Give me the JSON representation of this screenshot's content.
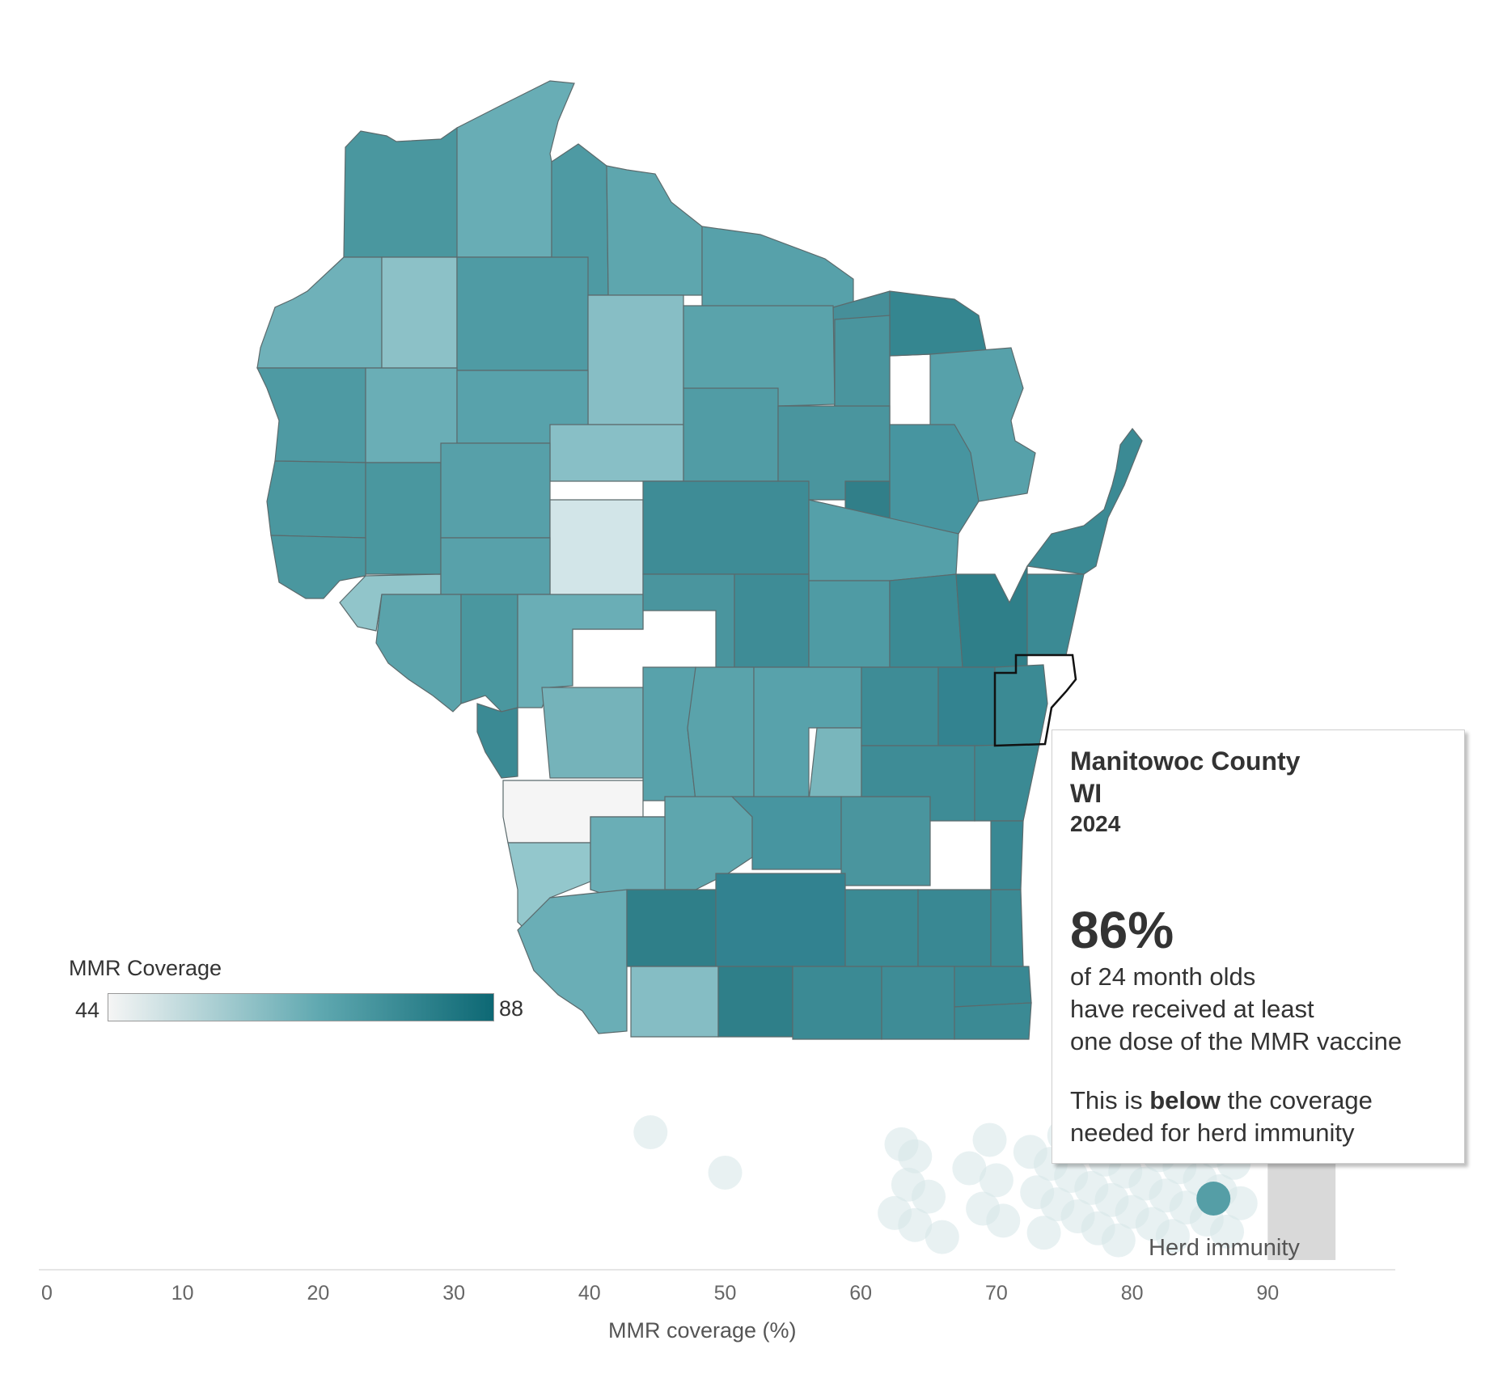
{
  "legend": {
    "title": "MMR Coverage",
    "min_label": "44",
    "max_label": "88",
    "color_low": "#f5f5f5",
    "color_high": "#0d6874"
  },
  "tooltip": {
    "county": "Manitowoc County",
    "state": "WI",
    "year": "2024",
    "value": "86%",
    "line1": "of 24 month olds",
    "line2": "have received at least",
    "line3": "one dose of the MMR vaccine",
    "comparison_pre": "This is",
    "comparison_word": "below",
    "comparison_post": "the coverage",
    "comparison_line2": "needed for herd immunity"
  },
  "chart_data": {
    "type": "scatter",
    "xlabel": "MMR coverage (%)",
    "xlim": [
      0,
      100
    ],
    "ticks": [
      "0",
      "10",
      "20",
      "30",
      "40",
      "50",
      "60",
      "70",
      "80",
      "90"
    ],
    "herd_immunity_label": "Herd immunity",
    "herd_immunity_range": [
      90,
      95
    ],
    "highlighted": {
      "name": "Manitowoc County",
      "value": 86
    },
    "values": [
      44.5,
      50,
      62.5,
      63,
      63.5,
      64,
      64,
      65,
      66,
      68,
      69,
      69.5,
      70,
      70.5,
      72.5,
      73,
      73.5,
      74,
      74.5,
      75,
      75.5,
      76,
      76.5,
      77,
      77.5,
      78,
      78.5,
      79,
      79.5,
      80,
      80.5,
      81,
      81.5,
      82,
      82.5,
      83,
      83.5,
      84,
      84.5,
      85,
      85.5,
      86,
      86.5,
      87,
      87.5,
      88
    ]
  }
}
